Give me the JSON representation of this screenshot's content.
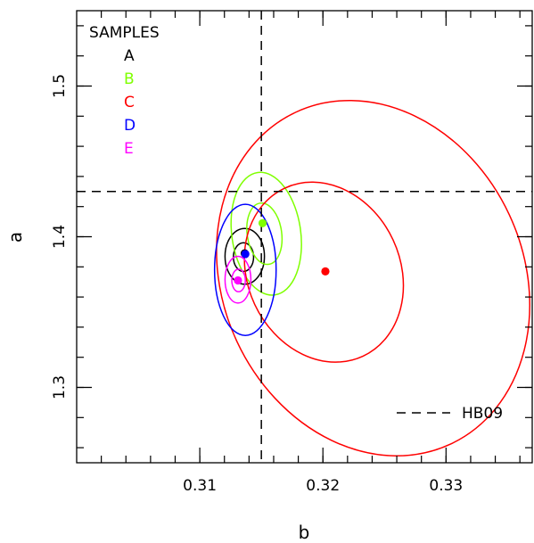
{
  "chart_data": {
    "type": "scatter",
    "title": "",
    "xlabel": "b",
    "ylabel": "a",
    "xlim": [
      0.3,
      0.337
    ],
    "ylim": [
      1.25,
      1.55
    ],
    "x_ticks": [
      {
        "value": 0.31,
        "label": "0.31"
      },
      {
        "value": 0.32,
        "label": "0.32"
      },
      {
        "value": 0.33,
        "label": "0.33"
      }
    ],
    "y_ticks": [
      {
        "value": 1.3,
        "label": "1.3"
      },
      {
        "value": 1.4,
        "label": "1.4"
      },
      {
        "value": 1.5,
        "label": "1.5"
      }
    ],
    "legend_title": "SAMPLES",
    "legend_placement": "top-left",
    "series": [
      {
        "name": "A",
        "color": "#000000",
        "point": [
          0.31365,
          1.389
        ],
        "ellipses": [
          {
            "cx": 0.31355,
            "cy": 1.3865,
            "rx": 0.00082,
            "ry": 0.0095,
            "tilt": 0.0
          },
          {
            "cx": 0.31365,
            "cy": 1.387,
            "rx": 0.0016,
            "ry": 0.0185,
            "tilt": 0.0
          }
        ]
      },
      {
        "name": "B",
        "color": "#7fff00",
        "point": [
          0.3151,
          1.409
        ],
        "ellipses": [
          {
            "cx": 0.31525,
            "cy": 1.402,
            "rx": 0.0014,
            "ry": 0.0205,
            "tilt": 0.0
          },
          {
            "cx": 0.3154,
            "cy": 1.402,
            "rx": 0.0028,
            "ry": 0.041,
            "tilt": 0.0
          }
        ]
      },
      {
        "name": "C",
        "color": "#ff0000",
        "point": [
          0.3202,
          1.377
        ],
        "ellipses": [
          {
            "cx": 0.32008,
            "cy": 1.3765,
            "rx": 0.0062,
            "ry": 0.0615,
            "tilt": 0.0
          },
          {
            "cx": 0.32408,
            "cy": 1.3725,
            "rx": 0.0122,
            "ry": 0.1215,
            "tilt": 0.0
          }
        ]
      },
      {
        "name": "D",
        "color": "#0000ff",
        "point": [
          0.3137,
          1.3885
        ],
        "ellipses": [
          {
            "cx": 0.3137,
            "cy": 1.378,
            "rx": 0.0025,
            "ry": 0.0435,
            "tilt": 0.0
          }
        ]
      },
      {
        "name": "E",
        "color": "#ff00ff",
        "point": [
          0.3131,
          1.371
        ],
        "ellipses": [
          {
            "cx": 0.31315,
            "cy": 1.371,
            "rx": 0.00055,
            "ry": 0.0075,
            "tilt": 0.0
          },
          {
            "cx": 0.3131,
            "cy": 1.3715,
            "rx": 0.00105,
            "ry": 0.0155,
            "tilt": 0.0
          }
        ]
      }
    ],
    "reference": {
      "name": "HB09",
      "x": 0.315,
      "y": 1.43,
      "style": "dashed",
      "color": "#000000"
    }
  }
}
